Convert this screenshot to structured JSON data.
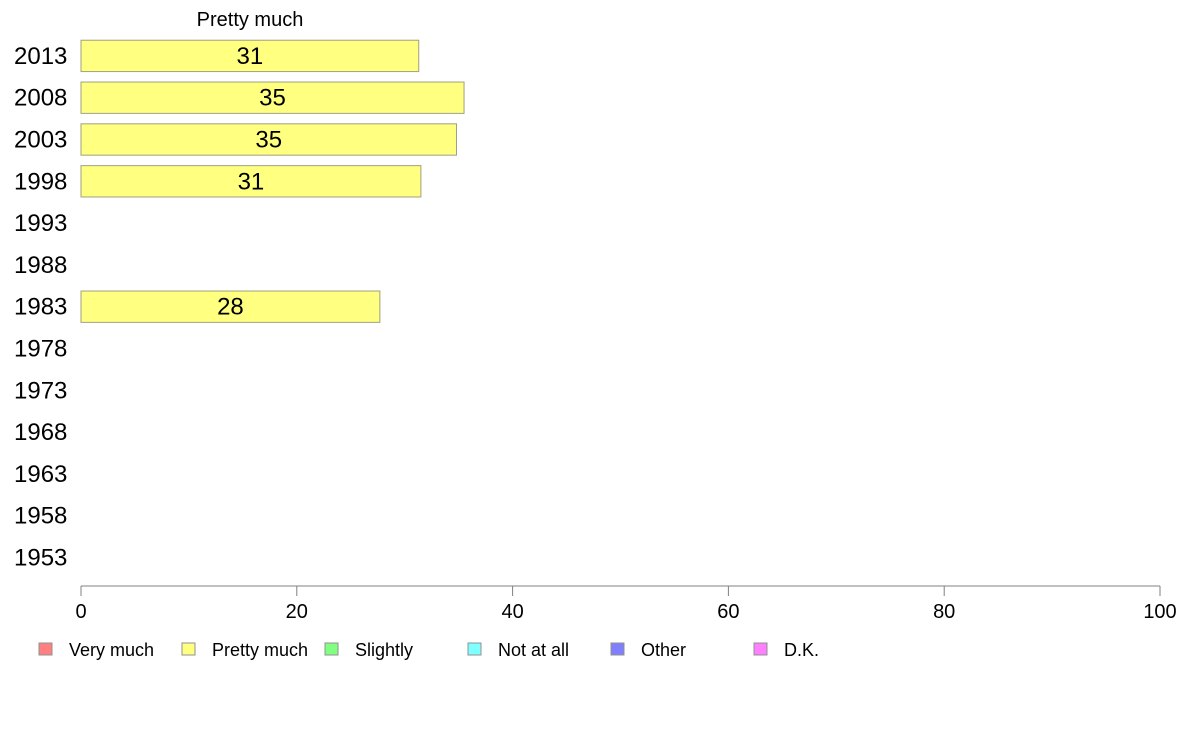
{
  "chart_data": {
    "type": "bar",
    "orientation": "horizontal",
    "title": "Pretty much",
    "xlabel": "",
    "ylabel": "",
    "xlim": [
      0,
      100
    ],
    "x_ticks": [
      0,
      20,
      40,
      60,
      80,
      100
    ],
    "categories": [
      "2013",
      "2008",
      "2003",
      "1998",
      "1993",
      "1988",
      "1983",
      "1978",
      "1973",
      "1968",
      "1963",
      "1958",
      "1953"
    ],
    "series": [
      {
        "name": "Pretty much",
        "color": "#ffff80",
        "values": [
          31.3,
          35.5,
          34.8,
          31.5,
          null,
          null,
          27.7,
          null,
          null,
          null,
          null,
          null,
          null
        ]
      }
    ],
    "data_labels": [
      "31",
      "35",
      "35",
      "31",
      "",
      "",
      "28",
      "",
      "",
      "",
      "",
      "",
      ""
    ],
    "grid": false,
    "legend": {
      "placement": "bottom",
      "entries": [
        {
          "label": "Very much",
          "color": "#ff8080"
        },
        {
          "label": "Pretty much",
          "color": "#ffff80"
        },
        {
          "label": "Slightly",
          "color": "#80ff80"
        },
        {
          "label": "Not at all",
          "color": "#80ffff"
        },
        {
          "label": "Other",
          "color": "#8080ff"
        },
        {
          "label": "D.K.",
          "color": "#ff80ff"
        }
      ]
    }
  }
}
